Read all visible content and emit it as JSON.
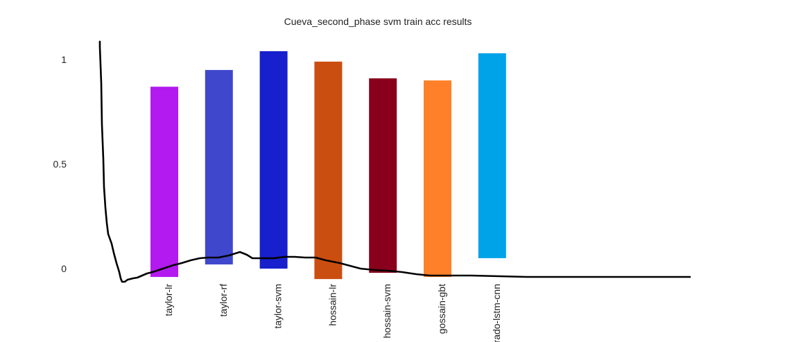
{
  "chart_data": {
    "type": "bar",
    "title": "Cueva_second_phase svm train acc results",
    "xlabel": "",
    "ylabel": "",
    "ylim": [
      0,
      1
    ],
    "yticks": [
      {
        "value": 0,
        "label": "0"
      },
      {
        "value": 0.5,
        "label": "0.5"
      },
      {
        "value": 1,
        "label": "1"
      }
    ],
    "categories": [
      "taylor-lr",
      "taylor-rf",
      "taylor-svm",
      "hossain-lr",
      "hossain-svm",
      "gossain-gbt",
      "Jurado-lstm-cnn"
    ],
    "bars": [
      {
        "category": "taylor-lr",
        "bottom": -0.04,
        "top": 0.87,
        "color": "#b21aef"
      },
      {
        "category": "taylor-rf",
        "bottom": 0.02,
        "top": 0.95,
        "color": "#3f48cc"
      },
      {
        "category": "taylor-svm",
        "bottom": 0.0,
        "top": 1.04,
        "color": "#1720cc"
      },
      {
        "category": "hossain-lr",
        "bottom": -0.05,
        "top": 0.99,
        "color": "#cb4e11"
      },
      {
        "category": "hossain-svm",
        "bottom": -0.02,
        "top": 0.91,
        "color": "#88001b"
      },
      {
        "category": "gossain-gbt",
        "bottom": -0.04,
        "top": 0.9,
        "color": "#ff8028"
      },
      {
        "category": "Jurado-lstm-cnn",
        "bottom": 0.05,
        "top": 1.03,
        "color": "#00a2e8"
      }
    ],
    "grid": false,
    "legend": "none"
  }
}
